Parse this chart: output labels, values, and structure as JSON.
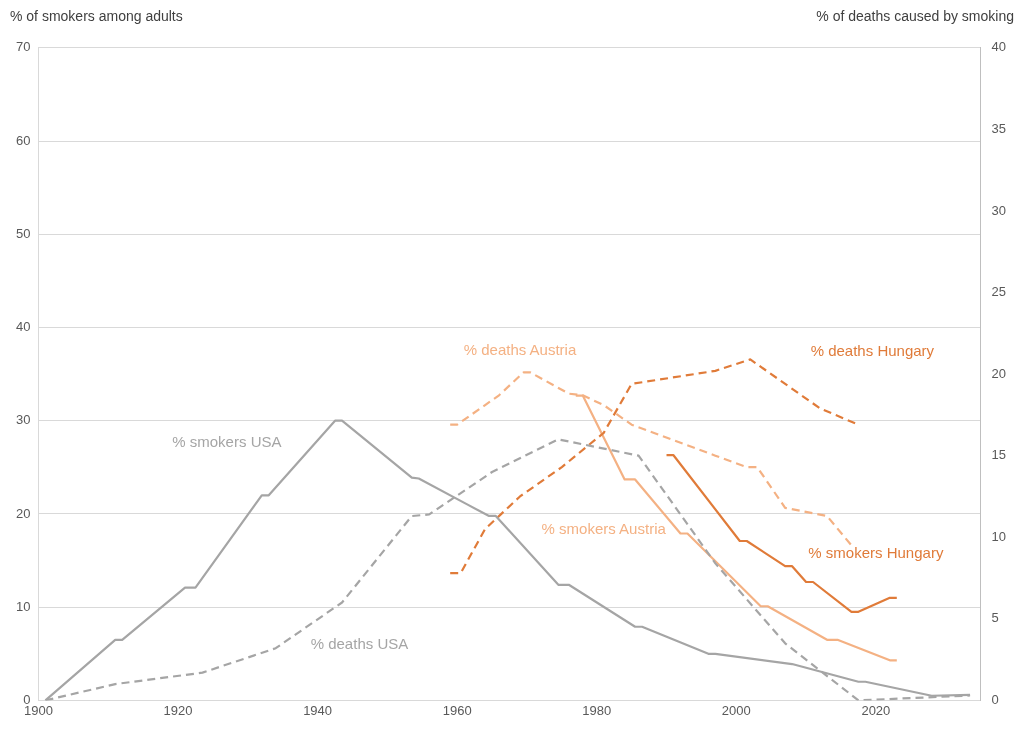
{
  "chart_data": {
    "type": "line",
    "ylabel": "% of smokers among adults",
    "y2label": "% of deaths caused by smoking",
    "xlim": [
      1900,
      2035
    ],
    "xticks": [
      1900,
      1920,
      1940,
      1960,
      1980,
      2000,
      2020
    ],
    "ylim": [
      0,
      70
    ],
    "yticks": [
      0,
      10,
      20,
      30,
      40,
      50,
      60,
      70
    ],
    "y2lim": [
      0,
      40
    ],
    "y2ticks": [
      0,
      5,
      10,
      15,
      20,
      25,
      30,
      35,
      40
    ],
    "grid": "y",
    "legend": false,
    "series": [
      {
        "name": "% smokers USA",
        "color": "#a5a5a5",
        "line_style": "solid",
        "x": [
          1901,
          1911,
          1912,
          1921,
          1922.5,
          1932,
          1933,
          1942.5,
          1943.5,
          1953.5,
          1954.5,
          1961.5,
          1964.5,
          1965.5,
          1974.5,
          1976,
          1985.5,
          1986.5,
          1996,
          1997,
          2008,
          2017.5,
          2018.5,
          2028,
          2033.5
        ],
        "values": [
          0,
          6.5,
          6.5,
          12.1,
          12.1,
          22,
          22,
          30,
          30,
          23.9,
          23.8,
          21,
          19.8,
          19.8,
          12.4,
          12.4,
          7.9,
          7.9,
          5,
          5,
          3.9,
          2,
          2,
          0.5,
          0.6
        ]
      },
      {
        "name": "% deaths USA",
        "color": "#a5a5a5",
        "line_style": "dashed",
        "axis": "y2",
        "x": [
          1901,
          1911,
          1923.5,
          1934,
          1943.5,
          1953.5,
          1956,
          1965,
          1974.5,
          1986,
          1997,
          2007,
          2017.5,
          2033.5
        ],
        "values": [
          0,
          1,
          1.7,
          3.2,
          6,
          11.3,
          11.4,
          14,
          16,
          15,
          8.4,
          3.5,
          0,
          0.3
        ]
      },
      {
        "name": "% deaths Austria",
        "color": "#f4b183",
        "line_style": "dashed",
        "axis": "y2",
        "x": [
          1959,
          1960,
          1966,
          1969.5,
          1970.5,
          1976,
          1978,
          1981,
          1985,
          1997,
          2001.5,
          2003,
          2007,
          2013,
          2016.5
        ],
        "values": [
          16.9,
          16.9,
          18.7,
          20.1,
          20.1,
          18.8,
          18.7,
          18.1,
          16.9,
          15,
          14.3,
          14.3,
          11.8,
          11.3,
          9.5
        ]
      },
      {
        "name": "% deaths Hungary",
        "color": "#e07b39",
        "line_style": "dashed",
        "axis": "y2",
        "x": [
          1959,
          1960.5,
          1964,
          1969,
          1975,
          1981,
          1985,
          1997,
          2002,
          2012,
          2017.5
        ],
        "values": [
          7.8,
          7.8,
          10.5,
          12.5,
          14.3,
          16.4,
          19.4,
          20.2,
          20.9,
          17.9,
          16.9
        ]
      },
      {
        "name": "% smokers Austria",
        "color": "#f4b183",
        "line_style": "solid",
        "x": [
          1977,
          1978,
          1984,
          1985.5,
          1992,
          1993,
          2003.5,
          2004.5,
          2013,
          2014.5,
          2022,
          2023
        ],
        "values": [
          32.7,
          32.7,
          23.7,
          23.7,
          17.9,
          17.9,
          10.1,
          10.1,
          6.5,
          6.5,
          4.3,
          4.3
        ]
      },
      {
        "name": "% smokers Hungary",
        "color": "#e07b39",
        "line_style": "solid",
        "x": [
          1990,
          1991,
          2000.5,
          2001.5,
          2007,
          2008,
          2010,
          2011,
          2016.5,
          2017.5,
          2022,
          2023
        ],
        "values": [
          26.3,
          26.3,
          17.1,
          17.1,
          14.4,
          14.4,
          12.7,
          12.7,
          9.5,
          9.5,
          11,
          11
        ]
      }
    ]
  }
}
